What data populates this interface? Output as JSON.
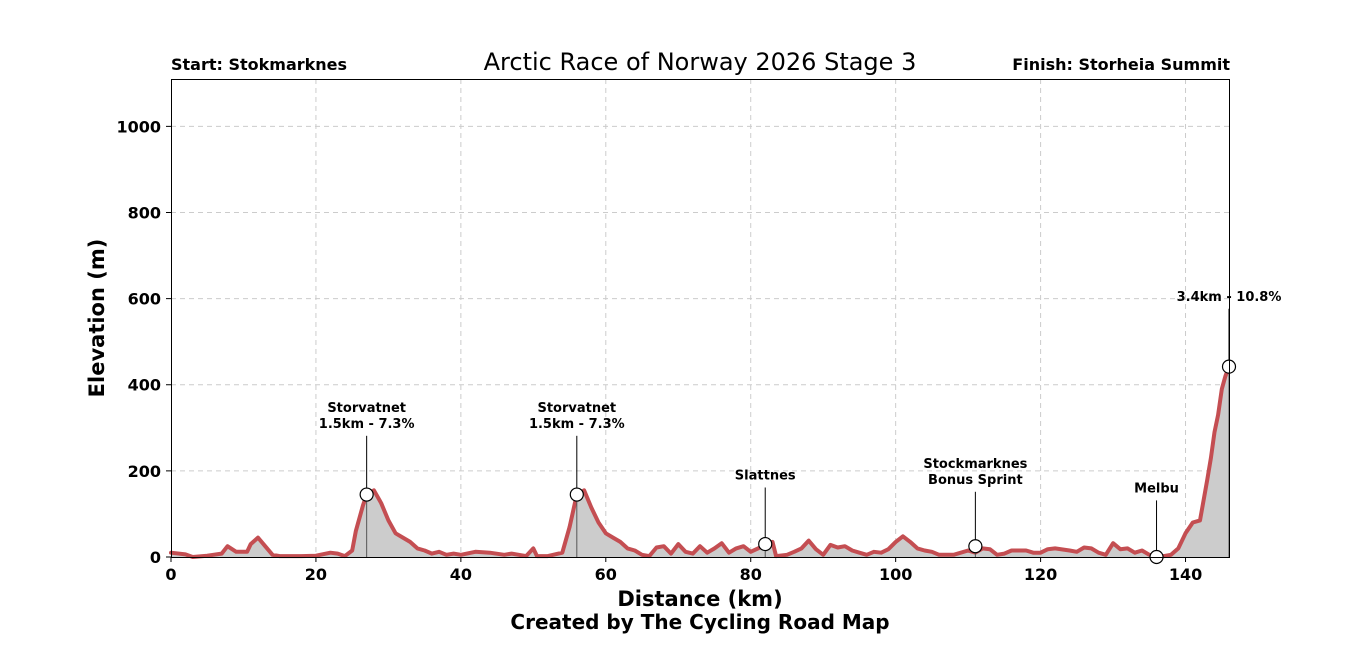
{
  "chart_data": {
    "type": "area",
    "title": "Arctic Race of Norway 2026 Stage 3",
    "start_label": "Start: Stokmarknes",
    "finish_label": "Finish: Storheia Summit",
    "xlabel": "Distance (km)",
    "ylabel": "Elevation (m)",
    "credit": "Created by The Cycling Road Map",
    "xlim": [
      0,
      146
    ],
    "ylim": [
      0,
      1110
    ],
    "xticks": [
      0,
      20,
      40,
      60,
      80,
      100,
      120,
      140
    ],
    "yticks": [
      0,
      200,
      400,
      600,
      800,
      1000
    ],
    "grid": true,
    "line_color": "#c44e52",
    "fill_color": "#cccccc",
    "profile": [
      [
        0,
        10
      ],
      [
        2,
        6
      ],
      [
        3,
        0
      ],
      [
        5,
        3
      ],
      [
        7,
        8
      ],
      [
        7.8,
        25
      ],
      [
        9,
        12
      ],
      [
        10.5,
        12
      ],
      [
        11,
        30
      ],
      [
        12,
        45
      ],
      [
        13,
        25
      ],
      [
        14,
        5
      ],
      [
        15,
        2
      ],
      [
        18,
        2
      ],
      [
        20,
        3
      ],
      [
        22,
        10
      ],
      [
        23,
        8
      ],
      [
        24,
        2
      ],
      [
        25,
        15
      ],
      [
        25.5,
        60
      ],
      [
        26.5,
        120
      ],
      [
        27,
        145
      ],
      [
        28,
        155
      ],
      [
        29,
        125
      ],
      [
        30,
        85
      ],
      [
        31,
        55
      ],
      [
        32,
        45
      ],
      [
        33,
        35
      ],
      [
        34,
        20
      ],
      [
        35,
        15
      ],
      [
        36,
        8
      ],
      [
        37,
        12
      ],
      [
        38,
        5
      ],
      [
        39,
        8
      ],
      [
        40,
        5
      ],
      [
        42,
        12
      ],
      [
        44,
        10
      ],
      [
        46,
        5
      ],
      [
        47,
        8
      ],
      [
        48,
        5
      ],
      [
        49,
        2
      ],
      [
        50,
        20
      ],
      [
        50.5,
        2
      ],
      [
        52,
        2
      ],
      [
        54,
        10
      ],
      [
        55,
        70
      ],
      [
        56,
        145
      ],
      [
        57,
        155
      ],
      [
        58,
        115
      ],
      [
        59,
        80
      ],
      [
        60,
        55
      ],
      [
        61,
        45
      ],
      [
        62,
        35
      ],
      [
        63,
        20
      ],
      [
        64,
        15
      ],
      [
        65,
        5
      ],
      [
        66,
        2
      ],
      [
        67,
        22
      ],
      [
        68,
        25
      ],
      [
        69,
        8
      ],
      [
        70,
        30
      ],
      [
        71,
        12
      ],
      [
        72,
        8
      ],
      [
        73,
        25
      ],
      [
        74,
        10
      ],
      [
        75,
        20
      ],
      [
        76,
        32
      ],
      [
        77,
        10
      ],
      [
        78,
        20
      ],
      [
        79,
        25
      ],
      [
        80,
        12
      ],
      [
        81,
        20
      ],
      [
        82,
        28
      ],
      [
        83,
        35
      ],
      [
        83.5,
        2
      ],
      [
        85,
        5
      ],
      [
        86,
        12
      ],
      [
        87,
        20
      ],
      [
        88,
        38
      ],
      [
        89,
        18
      ],
      [
        90,
        5
      ],
      [
        91,
        28
      ],
      [
        92,
        22
      ],
      [
        93,
        25
      ],
      [
        94,
        15
      ],
      [
        95,
        10
      ],
      [
        96,
        5
      ],
      [
        97,
        12
      ],
      [
        98,
        10
      ],
      [
        99,
        18
      ],
      [
        100,
        35
      ],
      [
        101,
        48
      ],
      [
        102,
        35
      ],
      [
        103,
        20
      ],
      [
        104,
        15
      ],
      [
        105,
        12
      ],
      [
        106,
        5
      ],
      [
        108,
        5
      ],
      [
        110,
        15
      ],
      [
        111,
        10
      ],
      [
        112,
        20
      ],
      [
        113,
        18
      ],
      [
        114,
        5
      ],
      [
        115,
        8
      ],
      [
        116,
        15
      ],
      [
        118,
        15
      ],
      [
        119,
        10
      ],
      [
        120,
        10
      ],
      [
        121,
        18
      ],
      [
        122,
        20
      ],
      [
        124,
        15
      ],
      [
        125,
        12
      ],
      [
        126,
        22
      ],
      [
        127,
        20
      ],
      [
        128,
        10
      ],
      [
        129,
        5
      ],
      [
        130,
        32
      ],
      [
        131,
        18
      ],
      [
        132,
        20
      ],
      [
        133,
        10
      ],
      [
        134,
        15
      ],
      [
        135,
        5
      ],
      [
        136,
        3
      ],
      [
        137,
        2
      ],
      [
        138,
        5
      ],
      [
        139,
        20
      ],
      [
        140,
        55
      ],
      [
        141,
        80
      ],
      [
        142,
        85
      ],
      [
        143,
        180
      ],
      [
        143.5,
        230
      ],
      [
        144,
        290
      ],
      [
        144.5,
        330
      ],
      [
        145,
        390
      ],
      [
        145.5,
        420
      ],
      [
        146,
        442
      ]
    ],
    "markers": [
      {
        "x": 27,
        "y": 145,
        "label": [
          "Storvatnet",
          "1.5km - 7.3%"
        ],
        "label_y": 300
      },
      {
        "x": 56,
        "y": 145,
        "label": [
          "Storvatnet",
          "1.5km - 7.3%"
        ],
        "label_y": 300
      },
      {
        "x": 82,
        "y": 30,
        "label": [
          "Slattnes"
        ],
        "label_y": 180
      },
      {
        "x": 111,
        "y": 25,
        "label": [
          "Stockmarknes",
          "Bonus Sprint"
        ],
        "label_y": 170
      },
      {
        "x": 136,
        "y": 0,
        "label": [
          "Melbu"
        ],
        "label_y": 150
      },
      {
        "x": 146,
        "y": 442,
        "label": [
          "3.4km - 10.8%"
        ],
        "label_y": 595
      }
    ]
  }
}
